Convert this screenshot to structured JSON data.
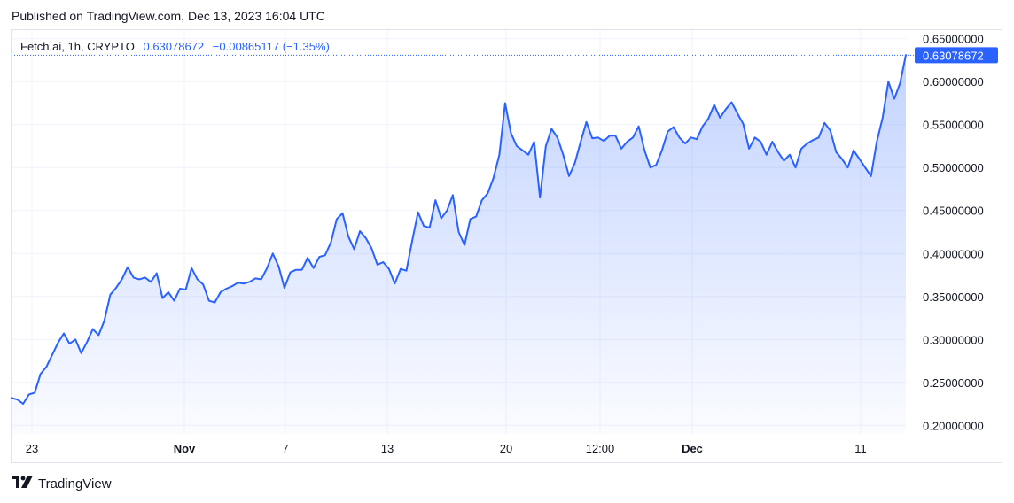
{
  "published_text": "Published on TradingView.com, Dec 13, 2023 16:04 UTC",
  "legend": {
    "symbol": "Fetch.ai, 1h, CRYPTO",
    "last": "0.63078672",
    "change": "−0.00865117 (−1.35%)"
  },
  "footer": {
    "brand": "TradingView",
    "logo_icon": "tradingview-logo-icon"
  },
  "colors": {
    "line": "#2962ff",
    "fill_top": "#2962ff",
    "grid": "#f0f3fa",
    "axis_text": "#131722",
    "price_tag_bg": "#2962ff"
  },
  "chart_data": {
    "type": "area",
    "symbol": "Fetch.ai",
    "interval": "1h",
    "x_ticks": [
      "23",
      "Nov",
      "7",
      "13",
      "20",
      "12:00",
      "Dec",
      "11"
    ],
    "x_ticks_bold": [
      "Nov",
      "Dec"
    ],
    "y_ticks": [
      "0.20000000",
      "0.25000000",
      "0.30000000",
      "0.35000000",
      "0.40000000",
      "0.45000000",
      "0.50000000",
      "0.55000000",
      "0.60000000",
      "0.65000000"
    ],
    "ylim": [
      0.19,
      0.66
    ],
    "last_price": "0.63078672",
    "grid": true,
    "series": [
      {
        "values": [
          0.232,
          0.23,
          0.225,
          0.236,
          0.238,
          0.26,
          0.268,
          0.282,
          0.296,
          0.307,
          0.295,
          0.3,
          0.284,
          0.297,
          0.312,
          0.305,
          0.322,
          0.352,
          0.36,
          0.37,
          0.384,
          0.372,
          0.37,
          0.372,
          0.367,
          0.377,
          0.348,
          0.355,
          0.345,
          0.359,
          0.358,
          0.383,
          0.37,
          0.364,
          0.345,
          0.343,
          0.355,
          0.359,
          0.362,
          0.366,
          0.365,
          0.367,
          0.371,
          0.37,
          0.383,
          0.4,
          0.385,
          0.36,
          0.378,
          0.381,
          0.381,
          0.395,
          0.383,
          0.396,
          0.398,
          0.413,
          0.44,
          0.447,
          0.42,
          0.405,
          0.426,
          0.418,
          0.406,
          0.387,
          0.39,
          0.382,
          0.365,
          0.382,
          0.38,
          0.415,
          0.448,
          0.432,
          0.43,
          0.462,
          0.441,
          0.45,
          0.468,
          0.425,
          0.41,
          0.44,
          0.443,
          0.462,
          0.47,
          0.488,
          0.515,
          0.575,
          0.54,
          0.525,
          0.52,
          0.515,
          0.53,
          0.465,
          0.525,
          0.545,
          0.535,
          0.515,
          0.49,
          0.505,
          0.53,
          0.553,
          0.534,
          0.535,
          0.531,
          0.537,
          0.537,
          0.522,
          0.53,
          0.535,
          0.548,
          0.52,
          0.5,
          0.503,
          0.52,
          0.542,
          0.547,
          0.535,
          0.528,
          0.535,
          0.533,
          0.548,
          0.557,
          0.573,
          0.558,
          0.568,
          0.576,
          0.563,
          0.551,
          0.522,
          0.535,
          0.53,
          0.515,
          0.53,
          0.518,
          0.508,
          0.515,
          0.5,
          0.522,
          0.528,
          0.532,
          0.535,
          0.552,
          0.543,
          0.518,
          0.51,
          0.5,
          0.52,
          0.51,
          0.5,
          0.49,
          0.53,
          0.558,
          0.6,
          0.58,
          0.598,
          0.631
        ]
      }
    ]
  }
}
